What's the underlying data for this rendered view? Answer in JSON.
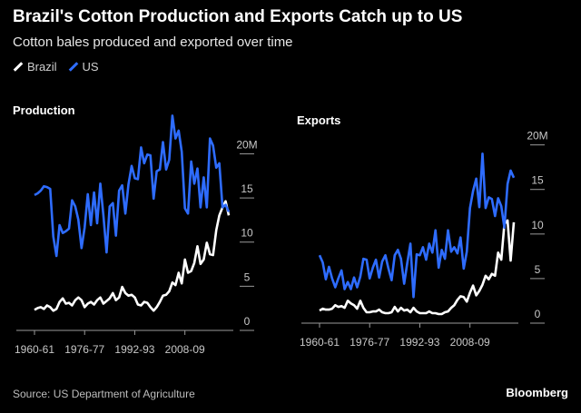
{
  "title": "Brazil's Cotton Production and Exports Catch up to US",
  "subtitle": "Cotton bales produced and exported over time",
  "legend": {
    "brazil": "Brazil",
    "us": "US"
  },
  "colors": {
    "brazil": "#ffffff",
    "us": "#2e6cff",
    "axis": "#9a9a9a",
    "background": "#000000"
  },
  "source": "Source: US Department of Agriculture",
  "brand": "Bloomberg",
  "chart_data": [
    {
      "type": "line",
      "title": "Production",
      "x_ticks": [
        "1960-61",
        "1976-77",
        "1992-93",
        "2008-09"
      ],
      "y_ticks": [
        "0",
        "5",
        "10",
        "15",
        "20M"
      ],
      "ylim": [
        0,
        22
      ],
      "x_start": 1960,
      "series": [
        {
          "name": "Brazil",
          "values": [
            1.3,
            1.5,
            1.6,
            1.4,
            1.8,
            1.6,
            1.2,
            1.4,
            2.2,
            2.6,
            2.0,
            2.1,
            1.8,
            2.4,
            2.7,
            2.4,
            1.6,
            2.0,
            2.2,
            1.9,
            2.4,
            2.7,
            2.0,
            2.3,
            2.6,
            3.2,
            2.4,
            2.7,
            3.9,
            3.2,
            2.9,
            3.0,
            2.7,
            1.9,
            1.8,
            2.2,
            2.1,
            1.6,
            1.2,
            1.6,
            2.2,
            2.9,
            3.0,
            3.4,
            4.4,
            4.1,
            5.5,
            4.3,
            7.0,
            5.5,
            5.7,
            6.6,
            8.5,
            6.5,
            7.0,
            8.9,
            7.6,
            7.5,
            10.3,
            12.0,
            12.9,
            13.6,
            12.0
          ]
        },
        {
          "name": "US",
          "values": [
            14.3,
            14.5,
            14.8,
            15.3,
            15.2,
            15.0,
            9.6,
            7.4,
            10.9,
            10.0,
            10.2,
            10.5,
            13.7,
            13.0,
            11.5,
            8.3,
            10.6,
            14.4,
            10.9,
            14.6,
            11.1,
            15.6,
            12.0,
            7.8,
            13.0,
            13.4,
            9.7,
            14.8,
            15.4,
            12.2,
            15.5,
            17.6,
            16.2,
            16.1,
            19.7,
            17.9,
            18.9,
            18.8,
            13.9,
            17.0,
            17.2,
            20.3,
            17.2,
            18.3,
            23.3,
            20.7,
            21.6,
            19.2,
            12.8,
            12.2,
            18.1,
            15.6,
            17.3,
            12.9,
            16.3,
            12.9,
            20.7,
            19.9,
            17.4,
            17.9,
            12.9,
            13.2,
            12.4
          ]
        }
      ]
    },
    {
      "type": "line",
      "title": "Exports",
      "x_ticks": [
        "1960-61",
        "1976-77",
        "1992-93",
        "2008-09"
      ],
      "y_ticks": [
        "0",
        "5",
        "10",
        "15",
        "20M"
      ],
      "ylim": [
        0,
        22
      ],
      "x_start": 1960,
      "series": [
        {
          "name": "Brazil",
          "values": [
            0.4,
            0.6,
            0.5,
            0.5,
            0.6,
            1.0,
            0.8,
            0.9,
            0.7,
            1.5,
            1.2,
            1.0,
            0.6,
            1.5,
            0.7,
            0.2,
            0.2,
            0.3,
            0.3,
            0.5,
            0.2,
            0.1,
            0.1,
            0.2,
            0.8,
            0.3,
            0.7,
            0.4,
            0.5,
            0.2,
            0.7,
            0.3,
            0.1,
            0.1,
            0.1,
            0.3,
            0.1,
            0.1,
            0.0,
            0.0,
            0.2,
            0.3,
            0.7,
            1.0,
            1.6,
            2.0,
            1.9,
            1.4,
            2.4,
            3.2,
            2.1,
            2.6,
            3.3,
            4.3,
            3.9,
            4.5,
            4.3,
            6.9,
            6.1,
            10.1,
            10.5,
            6.0,
            10.3
          ]
        },
        {
          "name": "US",
          "values": [
            6.6,
            5.8,
            3.9,
            5.3,
            4.0,
            3.0,
            4.0,
            4.9,
            2.8,
            3.6,
            2.8,
            4.1,
            3.0,
            4.2,
            6.2,
            6.1,
            4.0,
            5.2,
            6.1,
            4.1,
            5.9,
            6.6,
            5.1,
            3.8,
            6.6,
            7.2,
            6.2,
            3.4,
            5.7,
            7.9,
            1.9,
            6.7,
            6.6,
            7.5,
            6.1,
            7.9,
            6.9,
            9.4,
            5.2,
            7.2,
            6.2,
            9.4,
            7.0,
            7.5,
            6.8,
            8.6,
            5.1,
            7.0,
            11.9,
            13.8,
            15.2,
            12.0,
            18.0,
            11.9,
            13.1,
            12.9,
            11.0,
            13.0,
            12.1,
            9.7,
            14.6,
            16.1,
            15.3
          ]
        }
      ]
    }
  ]
}
